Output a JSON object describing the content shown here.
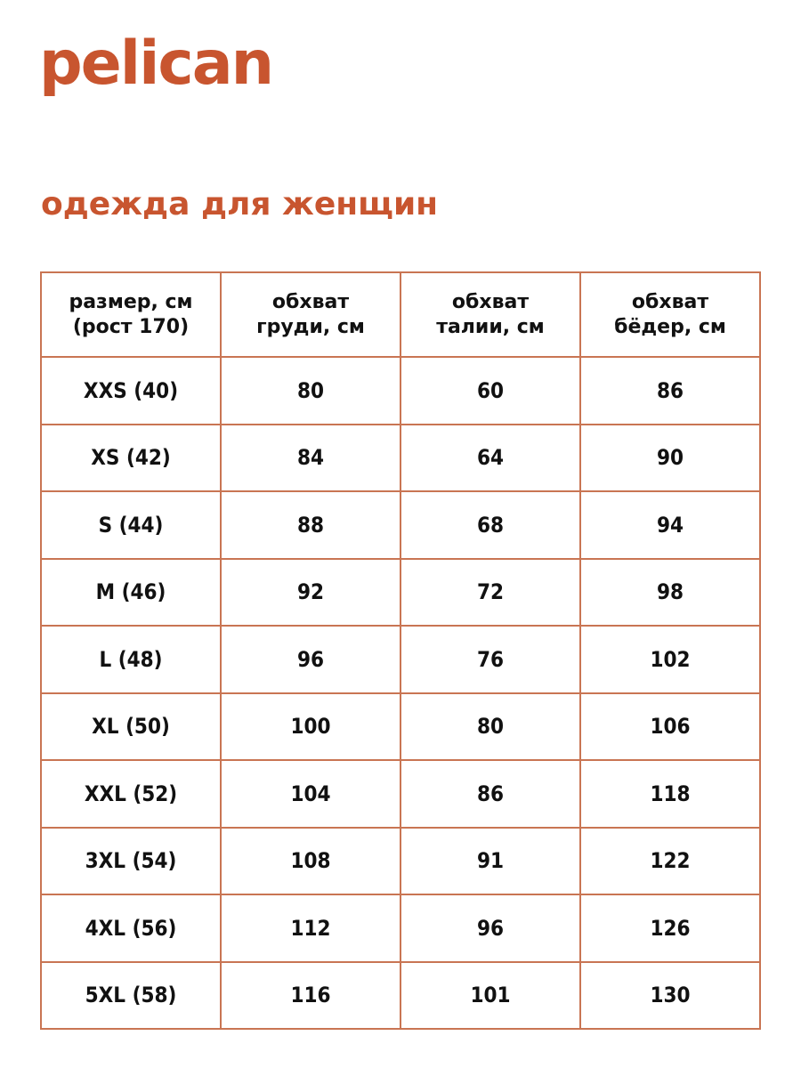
{
  "brand": {
    "logo_text": "pelican",
    "accent_color": "#c8552f",
    "border_color": "#c97553"
  },
  "title": "одежда для женщин",
  "table": {
    "headers": [
      [
        "размер, см",
        "(рост 170)"
      ],
      [
        "обхват",
        "груди, см"
      ],
      [
        "обхват",
        "талии, см"
      ],
      [
        "обхват",
        "бёдер, см"
      ]
    ],
    "rows": [
      [
        "XXS (40)",
        "80",
        "60",
        "86"
      ],
      [
        "XS (42)",
        "84",
        "64",
        "90"
      ],
      [
        "S (44)",
        "88",
        "68",
        "94"
      ],
      [
        "M (46)",
        "92",
        "72",
        "98"
      ],
      [
        "L (48)",
        "96",
        "76",
        "102"
      ],
      [
        "XL (50)",
        "100",
        "80",
        "106"
      ],
      [
        "XXL (52)",
        "104",
        "86",
        "118"
      ],
      [
        "3XL (54)",
        "108",
        "91",
        "122"
      ],
      [
        "4XL (56)",
        "112",
        "96",
        "126"
      ],
      [
        "5XL (58)",
        "116",
        "101",
        "130"
      ]
    ]
  }
}
